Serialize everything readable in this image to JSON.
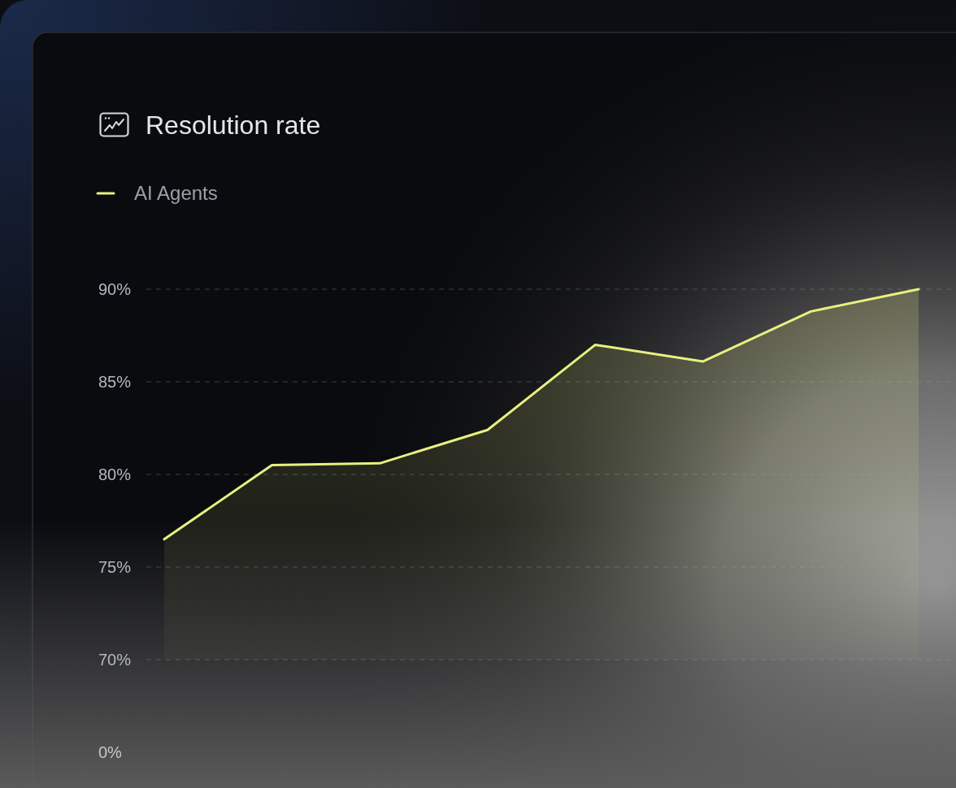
{
  "chart_data": {
    "type": "area",
    "title": "Resolution rate",
    "categories": [
      null,
      null,
      null,
      null,
      null,
      null,
      null,
      null
    ],
    "series": [
      {
        "name": "AI Agents",
        "color": "#e8f080",
        "values": [
          76.5,
          80.5,
          80.6,
          82.4,
          87.0,
          86.1,
          88.8,
          90.0
        ]
      }
    ],
    "ylim": [
      70,
      90
    ],
    "yticks": [
      {
        "value": 70,
        "label": "70%"
      },
      {
        "value": 75,
        "label": "75%"
      },
      {
        "value": 80,
        "label": "80%"
      },
      {
        "value": 85,
        "label": "85%"
      },
      {
        "value": 90,
        "label": "90%"
      }
    ],
    "annotations": [
      "0%"
    ],
    "grid": "y",
    "legend": "top left"
  }
}
